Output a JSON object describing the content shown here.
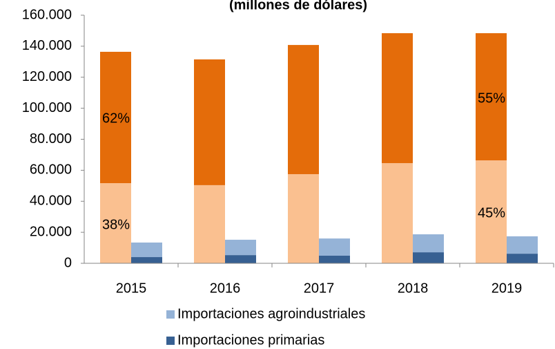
{
  "chart_data": {
    "type": "stacked_bar",
    "title": "(millones de dólares)",
    "categories": [
      "2015",
      "2016",
      "2017",
      "2018",
      "2019"
    ],
    "series": [
      {
        "color": "#fac090",
        "values": [
          51700,
          50400,
          57500,
          64600,
          66400
        ]
      },
      {
        "color": "#e46c0a",
        "values": [
          84700,
          81100,
          83300,
          83800,
          82000
        ]
      },
      {
        "name": "Importaciones primarias",
        "color": "#376092",
        "values": [
          4000,
          5300,
          4900,
          7100,
          6200
        ]
      },
      {
        "name": "Importaciones agroindustriales",
        "color": "#95b3d7",
        "values": [
          9400,
          9900,
          11100,
          11600,
          11200
        ]
      }
    ],
    "annotations": [
      "62%",
      "38%",
      "55%",
      "45%"
    ],
    "ylim": [
      0,
      160000
    ],
    "yticks": [
      0,
      {
        "value": 20000,
        "label": "20.000"
      },
      {
        "value": 40000,
        "label": "40.000"
      },
      {
        "value": 60000,
        "label": "60.000"
      },
      {
        "value": 80000,
        "label": "80.000"
      },
      {
        "value": 100000,
        "label": "100.000"
      },
      {
        "value": 120000,
        "label": "120.000"
      },
      {
        "value": 140000,
        "label": "140.000"
      },
      {
        "value": 160000,
        "label": "160.000"
      }
    ],
    "grid": false
  }
}
